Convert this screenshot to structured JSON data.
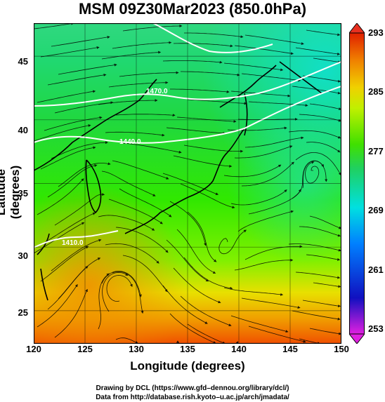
{
  "title": "MSM 09Z30Mar2023 (850.0hPa)",
  "x_axis": {
    "label": "Longitude (degrees)",
    "ticks": [
      "120",
      "125",
      "130",
      "135",
      "140",
      "145",
      "150"
    ],
    "range": [
      120,
      150
    ]
  },
  "y_axis": {
    "label": "Latitude  (degrees)",
    "ticks": [
      "45",
      "40",
      "35",
      "30",
      "25"
    ],
    "tick_values": [
      45,
      40,
      35,
      30,
      25
    ],
    "range": [
      22.4,
      47.6
    ]
  },
  "colorbar": {
    "ticks": [
      "293",
      "285",
      "277",
      "269",
      "261",
      "253"
    ],
    "tick_values": [
      293,
      285,
      277,
      269,
      261,
      253
    ],
    "range": [
      253,
      293
    ],
    "colors": [
      "#e020e0",
      "#1010c0",
      "#0080ff",
      "#00e0e0",
      "#20d060",
      "#40e000",
      "#c0f000",
      "#f0d000",
      "#f08000",
      "#e02000"
    ]
  },
  "contour_labels": [
    "1410.0",
    "1440.0",
    "1470.0"
  ],
  "credits": {
    "line1": "Drawing by DCL (https://www.gfd–dennou.org/library/dcl/)",
    "line2": "Data from http://database.rish.kyoto–u.ac.jp/arch/jmadata/"
  }
}
